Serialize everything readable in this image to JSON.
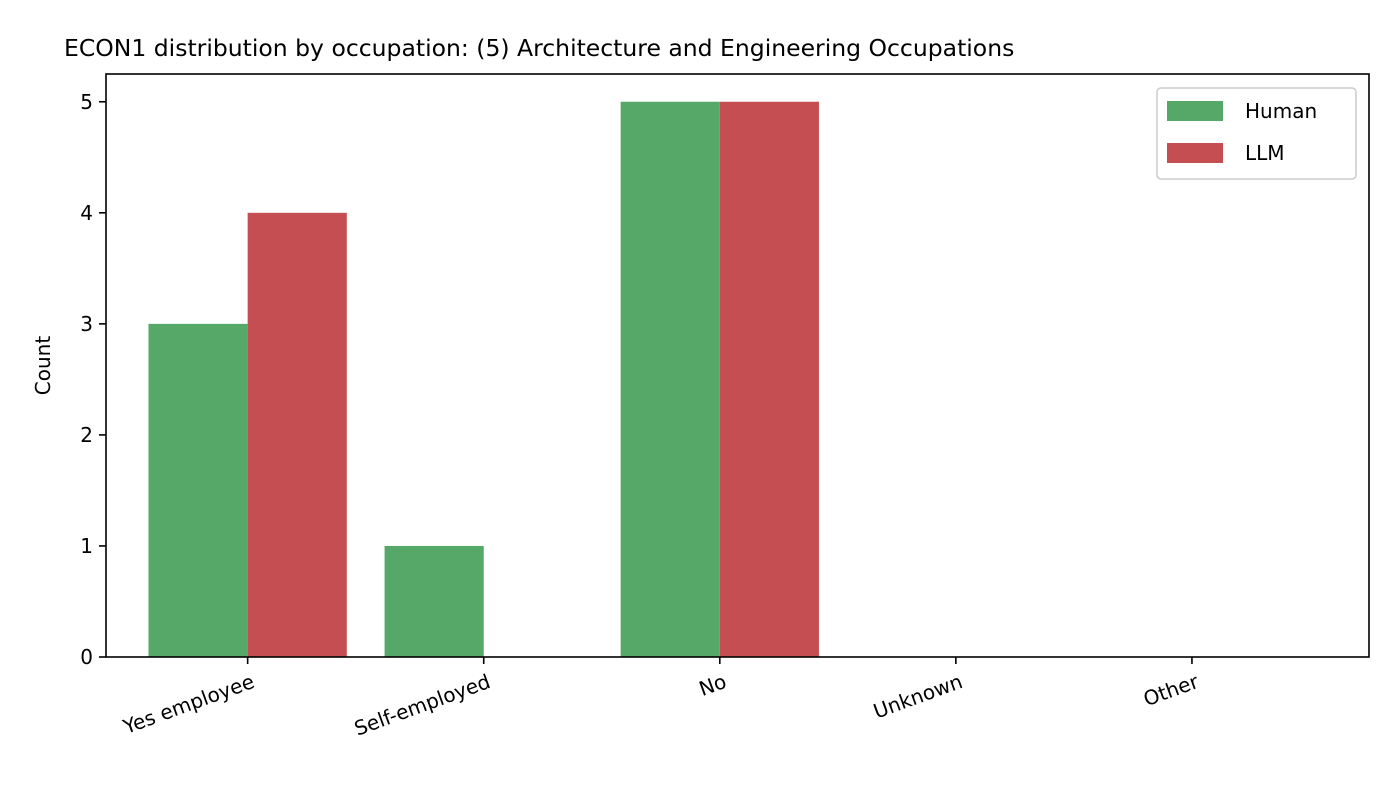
{
  "chart_data": {
    "type": "bar",
    "title": "ECON1 distribution by occupation: (5) Architecture and Engineering Occupations",
    "xlabel": "",
    "ylabel": "Count",
    "categories": [
      "Yes employee",
      "Self-employed",
      "No",
      "Unknown",
      "Other"
    ],
    "series": [
      {
        "name": "Human",
        "color": "#55a868",
        "values": [
          3,
          1,
          5,
          0,
          0
        ]
      },
      {
        "name": "LLM",
        "color": "#c44e52",
        "values": [
          4,
          0,
          5,
          0,
          0
        ]
      }
    ],
    "ylim": [
      0,
      5.25
    ],
    "yticks": [
      0,
      1,
      2,
      3,
      4,
      5
    ],
    "grid": false,
    "legend_position": "top-right"
  }
}
